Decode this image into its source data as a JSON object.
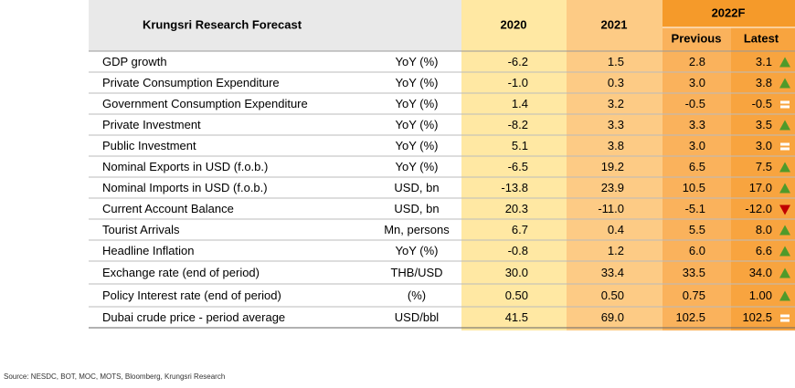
{
  "header": {
    "title": "Krungsri Research Forecast",
    "col_2020": "2020",
    "col_2021": "2021",
    "col_2022": "2022F",
    "sub_previous": "Previous",
    "sub_latest": "Latest"
  },
  "table": {
    "rows": [
      [
        "GDP growth",
        "YoY (%)",
        "-6.2",
        "1.5",
        "2.8",
        "3.1"
      ],
      [
        "Private Consumption Expenditure",
        "YoY (%)",
        "-1.0",
        "0.3",
        "3.0",
        "3.8"
      ],
      [
        "Government Consumption Expenditure",
        "YoY (%)",
        "1.4",
        "3.2",
        "-0.5",
        "-0.5"
      ],
      [
        "Private Investment",
        "YoY (%)",
        "-8.2",
        "3.3",
        "3.3",
        "3.5"
      ],
      [
        "Public Investment",
        "YoY (%)",
        "5.1",
        "3.8",
        "3.0",
        "3.0"
      ],
      [
        "Nominal Exports in USD (f.o.b.)",
        "YoY (%)",
        "-6.5",
        "19.2",
        "6.5",
        "7.5"
      ],
      [
        "Nominal Imports in USD (f.o.b.)",
        "USD, bn",
        "-13.8",
        "23.9",
        "10.5",
        "17.0"
      ],
      [
        "Current Account Balance",
        "USD, bn",
        "20.3",
        "-11.0",
        "-5.1",
        "-12.0"
      ],
      [
        "Tourist Arrivals",
        "Mn, persons",
        "6.7",
        "0.4",
        "5.5",
        "8.0"
      ],
      [
        "Headline Inflation",
        "YoY (%)",
        "-0.8",
        "1.2",
        "6.0",
        "6.6"
      ],
      [
        "Exchange rate (end of period)",
        "THB/USD",
        "30.0",
        "33.4",
        "33.5",
        "34.0"
      ],
      [
        "Policy Interest rate (end of period)",
        "(%)",
        "0.50",
        "0.50",
        "0.75",
        "1.00"
      ],
      [
        "Dubai crude price - period average",
        "USD/bbl",
        "41.5",
        "69.0",
        "102.5",
        "102.5"
      ]
    ]
  },
  "footer": {
    "source": "Source: NESDC, BOT, MOC, MOTS, Bloomberg, Krungsri Research"
  }
}
